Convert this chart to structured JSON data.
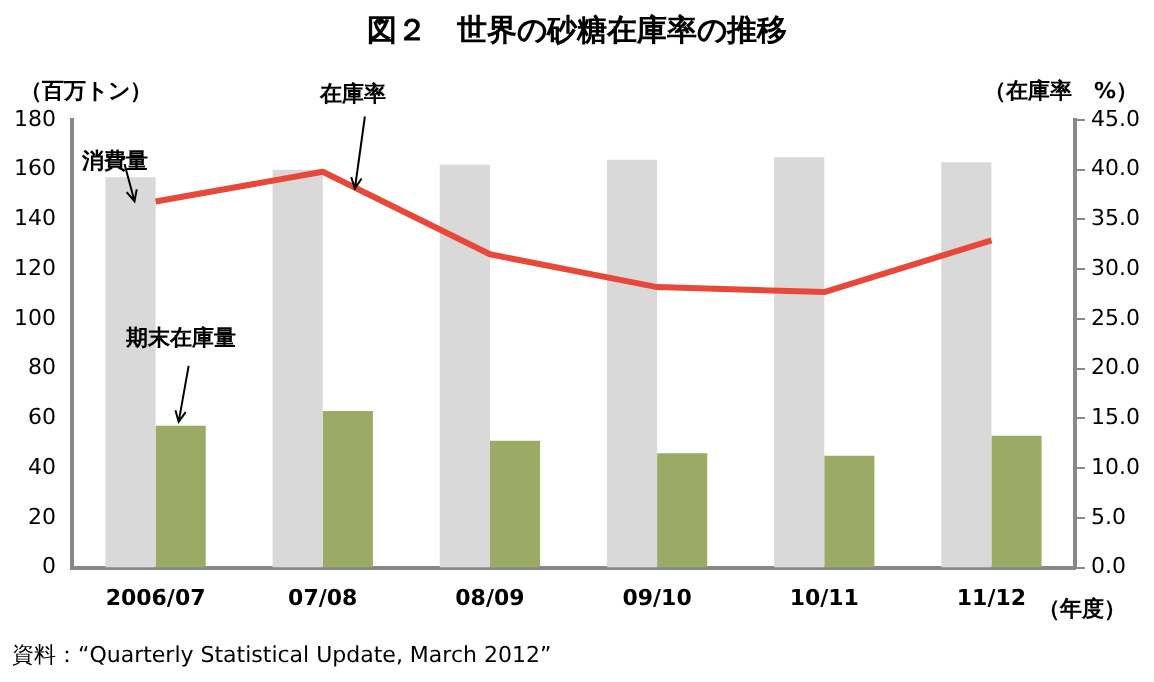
{
  "chart_data": {
    "type": "bar",
    "title": "図２　世界の砂糖在庫率の推移",
    "ylabel": "（百万トン）",
    "y2label": "（在庫率　%）",
    "xlabel": "（年度）",
    "categories": [
      "2006/07",
      "07/08",
      "08/09",
      "09/10",
      "10/11",
      "11/12"
    ],
    "series": [
      {
        "name": "消費量",
        "color": "#d9d9d9",
        "values": [
          157,
          160,
          162,
          164,
          165,
          163
        ]
      },
      {
        "name": "期末在庫量",
        "color": "#9baa64",
        "values": [
          57,
          63,
          51,
          46,
          45,
          53
        ]
      },
      {
        "name": "在庫率",
        "type": "line",
        "axis": "y2",
        "color": "#e8483a",
        "values": [
          36.8,
          39.8,
          31.5,
          28.2,
          27.7,
          32.9
        ]
      }
    ],
    "ylim": [
      0,
      180
    ],
    "yticks": [
      0,
      20,
      40,
      60,
      80,
      100,
      120,
      140,
      160,
      180
    ],
    "y2lim": [
      0,
      45
    ],
    "y2ticks": [
      {
        "value": 0,
        "label": "0.0"
      },
      {
        "value": 5,
        "label": "5.0"
      },
      {
        "value": 10,
        "label": "10.0"
      },
      {
        "value": 15,
        "label": "15.0"
      },
      {
        "value": 20,
        "label": "20.0"
      },
      {
        "value": 25,
        "label": "25.0"
      },
      {
        "value": 30,
        "label": "30.0"
      },
      {
        "value": 35,
        "label": "35.0"
      },
      {
        "value": 40,
        "label": "40.0"
      },
      {
        "value": 45,
        "label": "45.0"
      }
    ],
    "grid": false,
    "legend": false,
    "annotations": [
      "資料：“Quarterly Statistical Update, March 2012”"
    ]
  }
}
